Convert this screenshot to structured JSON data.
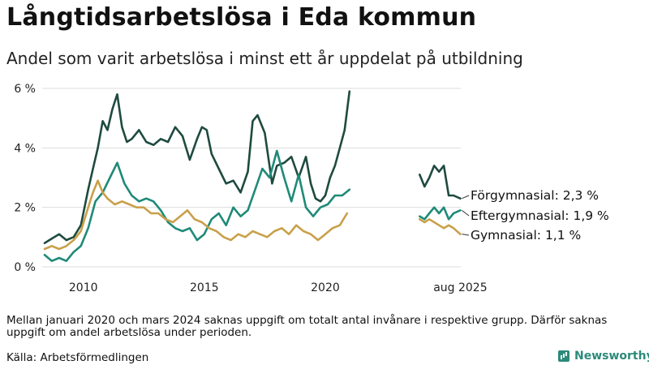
{
  "header": {
    "title": "Långtidsarbetslösa i Eda kommun",
    "subtitle": "Andel som varit arbetslösa i minst ett år uppdelat på utbildning"
  },
  "footer": {
    "note": "Mellan januari 2020 och mars 2024 saknas uppgift om totalt antal invånare i respektive grupp. Därför saknas uppgift om andel arbetslösa under perioden.",
    "source": "Källa: Arbetsförmedlingen",
    "brand": "Newsworthy"
  },
  "colors": {
    "grid": "#dddddd",
    "axis_text": "#222222"
  },
  "chart_data": {
    "type": "line",
    "title": "Långtidsarbetslösa i Eda kommun",
    "xlabel": "",
    "ylabel": "",
    "x_ticks": [
      {
        "x": 2010,
        "label": "2010"
      },
      {
        "x": 2015,
        "label": "2015"
      },
      {
        "x": 2020,
        "label": "2020"
      },
      {
        "x": 2025.58,
        "label": "aug 2025"
      }
    ],
    "y_ticks": [
      0,
      2,
      4,
      6
    ],
    "y_tick_labels": [
      "0 %",
      "2 %",
      "4 %",
      "6 %"
    ],
    "xlim": [
      2008.3,
      2025.6
    ],
    "ylim": [
      0,
      6
    ],
    "grid": true,
    "series": [
      {
        "key": "forgymnasial",
        "end_label": "Förgymnasial: 2,3 %",
        "color": "#1f4a40",
        "segments": [
          [
            [
              2008.4,
              0.8
            ],
            [
              2008.6,
              0.9
            ],
            [
              2008.8,
              1.0
            ],
            [
              2009.0,
              1.1
            ],
            [
              2009.3,
              0.9
            ],
            [
              2009.6,
              1.0
            ],
            [
              2009.9,
              1.4
            ],
            [
              2010.2,
              2.6
            ],
            [
              2010.4,
              3.3
            ],
            [
              2010.6,
              4.0
            ],
            [
              2010.8,
              4.9
            ],
            [
              2011.0,
              4.6
            ],
            [
              2011.2,
              5.3
            ],
            [
              2011.4,
              5.8
            ],
            [
              2011.6,
              4.7
            ],
            [
              2011.8,
              4.2
            ],
            [
              2012.0,
              4.3
            ],
            [
              2012.3,
              4.6
            ],
            [
              2012.6,
              4.2
            ],
            [
              2012.9,
              4.1
            ],
            [
              2013.2,
              4.3
            ],
            [
              2013.5,
              4.2
            ],
            [
              2013.8,
              4.7
            ],
            [
              2014.1,
              4.4
            ],
            [
              2014.4,
              3.6
            ],
            [
              2014.7,
              4.3
            ],
            [
              2014.9,
              4.7
            ],
            [
              2015.1,
              4.6
            ],
            [
              2015.3,
              3.8
            ],
            [
              2015.6,
              3.3
            ],
            [
              2015.9,
              2.8
            ],
            [
              2016.2,
              2.9
            ],
            [
              2016.5,
              2.5
            ],
            [
              2016.8,
              3.2
            ],
            [
              2017.0,
              4.9
            ],
            [
              2017.2,
              5.1
            ],
            [
              2017.5,
              4.5
            ],
            [
              2017.8,
              2.8
            ],
            [
              2018.0,
              3.4
            ],
            [
              2018.3,
              3.5
            ],
            [
              2018.6,
              3.7
            ],
            [
              2018.9,
              3.0
            ],
            [
              2019.2,
              3.7
            ],
            [
              2019.4,
              2.8
            ],
            [
              2019.6,
              2.3
            ],
            [
              2019.8,
              2.2
            ],
            [
              2020.0,
              2.4
            ],
            [
              2020.2,
              3.0
            ],
            [
              2020.4,
              3.4
            ],
            [
              2020.6,
              4.0
            ],
            [
              2020.8,
              4.6
            ],
            [
              2021.0,
              5.9
            ]
          ],
          [
            [
              2023.9,
              3.1
            ],
            [
              2024.1,
              2.7
            ],
            [
              2024.3,
              3.0
            ],
            [
              2024.5,
              3.4
            ],
            [
              2024.7,
              3.2
            ],
            [
              2024.9,
              3.4
            ],
            [
              2025.1,
              2.4
            ],
            [
              2025.3,
              2.4
            ],
            [
              2025.58,
              2.3
            ]
          ]
        ]
      },
      {
        "key": "eftergymnasial",
        "end_label": "Eftergymnasial: 1,9 %",
        "color": "#1f8a78",
        "segments": [
          [
            [
              2008.4,
              0.4
            ],
            [
              2008.7,
              0.2
            ],
            [
              2009.0,
              0.3
            ],
            [
              2009.3,
              0.2
            ],
            [
              2009.6,
              0.5
            ],
            [
              2009.9,
              0.7
            ],
            [
              2010.2,
              1.3
            ],
            [
              2010.5,
              2.2
            ],
            [
              2010.8,
              2.5
            ],
            [
              2011.1,
              3.0
            ],
            [
              2011.4,
              3.5
            ],
            [
              2011.7,
              2.8
            ],
            [
              2012.0,
              2.4
            ],
            [
              2012.3,
              2.2
            ],
            [
              2012.6,
              2.3
            ],
            [
              2012.9,
              2.2
            ],
            [
              2013.2,
              1.9
            ],
            [
              2013.5,
              1.5
            ],
            [
              2013.8,
              1.3
            ],
            [
              2014.1,
              1.2
            ],
            [
              2014.4,
              1.3
            ],
            [
              2014.7,
              0.9
            ],
            [
              2015.0,
              1.1
            ],
            [
              2015.3,
              1.6
            ],
            [
              2015.6,
              1.8
            ],
            [
              2015.9,
              1.4
            ],
            [
              2016.2,
              2.0
            ],
            [
              2016.5,
              1.7
            ],
            [
              2016.8,
              1.9
            ],
            [
              2017.1,
              2.6
            ],
            [
              2017.4,
              3.3
            ],
            [
              2017.7,
              3.0
            ],
            [
              2018.0,
              3.9
            ],
            [
              2018.3,
              3.0
            ],
            [
              2018.6,
              2.2
            ],
            [
              2018.9,
              3.1
            ],
            [
              2019.2,
              2.0
            ],
            [
              2019.5,
              1.7
            ],
            [
              2019.8,
              2.0
            ],
            [
              2020.1,
              2.1
            ],
            [
              2020.4,
              2.4
            ],
            [
              2020.7,
              2.4
            ],
            [
              2021.0,
              2.6
            ]
          ],
          [
            [
              2023.9,
              1.7
            ],
            [
              2024.1,
              1.6
            ],
            [
              2024.3,
              1.8
            ],
            [
              2024.5,
              2.0
            ],
            [
              2024.7,
              1.8
            ],
            [
              2024.9,
              2.0
            ],
            [
              2025.1,
              1.6
            ],
            [
              2025.3,
              1.8
            ],
            [
              2025.58,
              1.9
            ]
          ]
        ]
      },
      {
        "key": "gymnasial",
        "end_label": "Gymnasial: 1,1 %",
        "color": "#c9a04a",
        "segments": [
          [
            [
              2008.4,
              0.6
            ],
            [
              2008.7,
              0.7
            ],
            [
              2009.0,
              0.6
            ],
            [
              2009.3,
              0.7
            ],
            [
              2009.6,
              0.9
            ],
            [
              2009.9,
              1.2
            ],
            [
              2010.2,
              2.0
            ],
            [
              2010.4,
              2.5
            ],
            [
              2010.6,
              2.9
            ],
            [
              2010.8,
              2.5
            ],
            [
              2011.0,
              2.3
            ],
            [
              2011.3,
              2.1
            ],
            [
              2011.6,
              2.2
            ],
            [
              2011.9,
              2.1
            ],
            [
              2012.2,
              2.0
            ],
            [
              2012.5,
              2.0
            ],
            [
              2012.8,
              1.8
            ],
            [
              2013.1,
              1.8
            ],
            [
              2013.4,
              1.6
            ],
            [
              2013.7,
              1.5
            ],
            [
              2014.0,
              1.7
            ],
            [
              2014.3,
              1.9
            ],
            [
              2014.6,
              1.6
            ],
            [
              2014.9,
              1.5
            ],
            [
              2015.2,
              1.3
            ],
            [
              2015.5,
              1.2
            ],
            [
              2015.8,
              1.0
            ],
            [
              2016.1,
              0.9
            ],
            [
              2016.4,
              1.1
            ],
            [
              2016.7,
              1.0
            ],
            [
              2017.0,
              1.2
            ],
            [
              2017.3,
              1.1
            ],
            [
              2017.6,
              1.0
            ],
            [
              2017.9,
              1.2
            ],
            [
              2018.2,
              1.3
            ],
            [
              2018.5,
              1.1
            ],
            [
              2018.8,
              1.4
            ],
            [
              2019.1,
              1.2
            ],
            [
              2019.4,
              1.1
            ],
            [
              2019.7,
              0.9
            ],
            [
              2020.0,
              1.1
            ],
            [
              2020.3,
              1.3
            ],
            [
              2020.6,
              1.4
            ],
            [
              2020.9,
              1.8
            ]
          ],
          [
            [
              2023.9,
              1.6
            ],
            [
              2024.1,
              1.5
            ],
            [
              2024.3,
              1.6
            ],
            [
              2024.5,
              1.5
            ],
            [
              2024.7,
              1.4
            ],
            [
              2024.9,
              1.3
            ],
            [
              2025.1,
              1.4
            ],
            [
              2025.3,
              1.3
            ],
            [
              2025.58,
              1.1
            ]
          ]
        ]
      }
    ]
  }
}
